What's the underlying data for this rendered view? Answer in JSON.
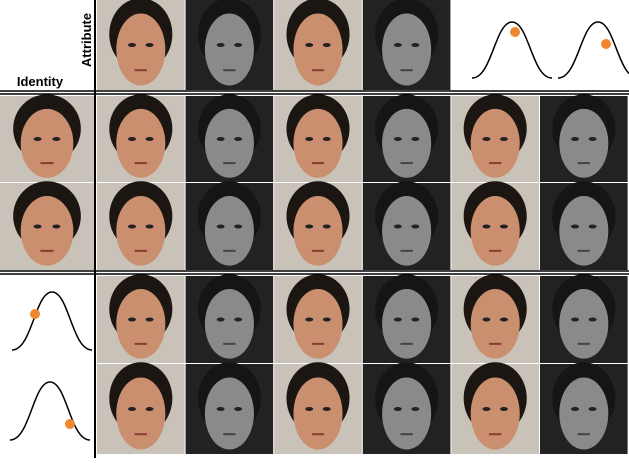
{
  "header": {
    "attribute_label": "Attribute",
    "identity_label": "Identity"
  }
}
